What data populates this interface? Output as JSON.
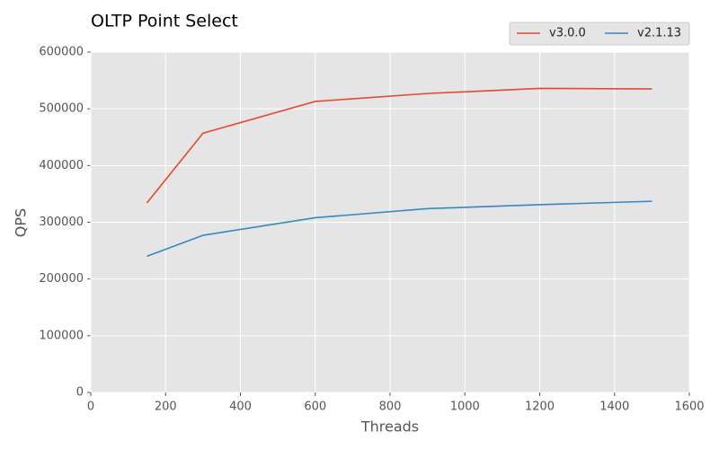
{
  "chart_data": {
    "type": "line",
    "title": "OLTP Point Select",
    "x_label": "Threads",
    "y_label": "QPS",
    "x": [
      150,
      300,
      600,
      900,
      1200,
      1500
    ],
    "series": [
      {
        "name": "v3.0.0",
        "color": "#E24A33",
        "values": [
          334000,
          457000,
          513000,
          527000,
          536000,
          535000
        ]
      },
      {
        "name": "v2.1.13",
        "color": "#348ABD",
        "values": [
          240000,
          277000,
          308000,
          324000,
          331000,
          337000
        ]
      }
    ],
    "xlim": [
      0,
      1600
    ],
    "xticks": [
      0,
      200,
      400,
      600,
      800,
      1000,
      1200,
      1400,
      1600
    ],
    "ylim": [
      0,
      600000
    ],
    "yticks": [
      0,
      100000,
      200000,
      300000,
      400000,
      500000,
      600000
    ],
    "grid": true,
    "legend": "upper right"
  }
}
